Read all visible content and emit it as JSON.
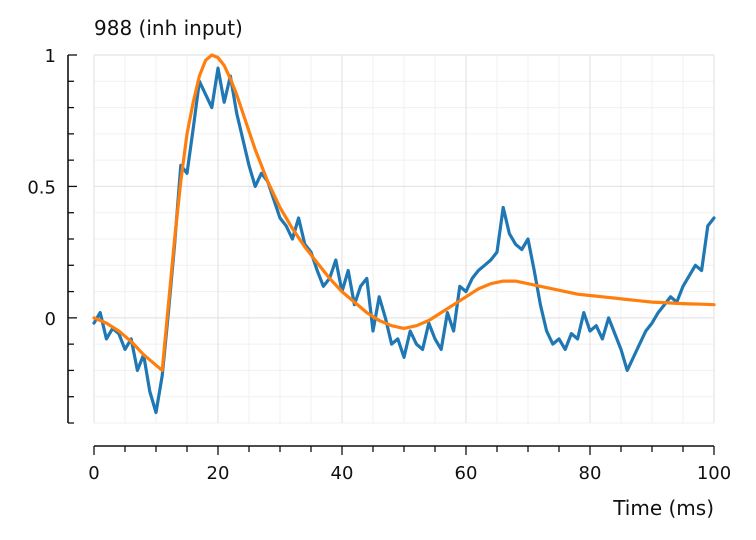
{
  "chart_data": {
    "type": "line",
    "title": "988 (inh input)",
    "xlabel": "Time (ms)",
    "ylabel": "",
    "xlim": [
      0,
      100
    ],
    "ylim": [
      -0.4,
      1.0
    ],
    "xticks": [
      0,
      20,
      40,
      60,
      80,
      100
    ],
    "xtick_labels": [
      "0",
      "20",
      "40",
      "60",
      "80",
      "100"
    ],
    "yticks": [
      0,
      0.5,
      1
    ],
    "ytick_labels": [
      "0",
      "0.5",
      "1"
    ],
    "grid": true,
    "legend": "none",
    "series": [
      {
        "color": "#1f77b4",
        "x": [
          0,
          1,
          2,
          3,
          4,
          5,
          6,
          7,
          8,
          9,
          10,
          11,
          12,
          13,
          14,
          15,
          16,
          17,
          18,
          19,
          20,
          21,
          22,
          23,
          24,
          25,
          26,
          27,
          28,
          29,
          30,
          31,
          32,
          33,
          34,
          35,
          36,
          37,
          38,
          39,
          40,
          41,
          42,
          43,
          44,
          45,
          46,
          47,
          48,
          49,
          50,
          51,
          52,
          53,
          54,
          55,
          56,
          57,
          58,
          59,
          60,
          61,
          62,
          63,
          64,
          65,
          66,
          67,
          68,
          69,
          70,
          71,
          72,
          73,
          74,
          75,
          76,
          77,
          78,
          79,
          80,
          81,
          82,
          83,
          84,
          85,
          86,
          87,
          88,
          89,
          90,
          91,
          92,
          93,
          94,
          95,
          96,
          97,
          98,
          99,
          100
        ],
        "y": [
          -0.02,
          0.02,
          -0.08,
          -0.04,
          -0.06,
          -0.12,
          -0.08,
          -0.2,
          -0.14,
          -0.28,
          -0.36,
          -0.22,
          0.02,
          0.28,
          0.58,
          0.55,
          0.72,
          0.9,
          0.85,
          0.8,
          0.95,
          0.82,
          0.92,
          0.78,
          0.68,
          0.58,
          0.5,
          0.55,
          0.52,
          0.45,
          0.38,
          0.35,
          0.3,
          0.38,
          0.28,
          0.25,
          0.18,
          0.12,
          0.15,
          0.22,
          0.1,
          0.18,
          0.05,
          0.12,
          0.15,
          -0.05,
          0.08,
          0.0,
          -0.1,
          -0.08,
          -0.15,
          -0.05,
          -0.1,
          -0.12,
          -0.02,
          -0.08,
          -0.12,
          0.02,
          -0.05,
          0.12,
          0.1,
          0.15,
          0.18,
          0.2,
          0.22,
          0.25,
          0.42,
          0.32,
          0.28,
          0.26,
          0.3,
          0.18,
          0.05,
          -0.05,
          -0.1,
          -0.08,
          -0.12,
          -0.06,
          -0.08,
          0.02,
          -0.05,
          -0.03,
          -0.08,
          0.0,
          -0.06,
          -0.12,
          -0.2,
          -0.15,
          -0.1,
          -0.05,
          -0.02,
          0.02,
          0.05,
          0.08,
          0.06,
          0.12,
          0.16,
          0.2,
          0.18,
          0.35,
          0.38
        ]
      },
      {
        "color": "#ff7f0e",
        "x": [
          0,
          2,
          4,
          6,
          8,
          10,
          11,
          12,
          13,
          14,
          15,
          16,
          17,
          18,
          19,
          20,
          21,
          22,
          23,
          24,
          26,
          28,
          30,
          32,
          34,
          36,
          38,
          40,
          42,
          44,
          46,
          48,
          50,
          52,
          54,
          56,
          58,
          60,
          62,
          64,
          66,
          68,
          70,
          72,
          74,
          76,
          78,
          80,
          82,
          84,
          86,
          88,
          90,
          92,
          94,
          96,
          98,
          100
        ],
        "y": [
          0.0,
          -0.02,
          -0.05,
          -0.09,
          -0.14,
          -0.18,
          -0.2,
          0.05,
          0.3,
          0.52,
          0.7,
          0.82,
          0.92,
          0.98,
          1.0,
          0.99,
          0.96,
          0.91,
          0.85,
          0.78,
          0.64,
          0.52,
          0.42,
          0.34,
          0.27,
          0.21,
          0.15,
          0.1,
          0.06,
          0.02,
          -0.01,
          -0.03,
          -0.04,
          -0.03,
          -0.01,
          0.02,
          0.05,
          0.08,
          0.11,
          0.13,
          0.14,
          0.14,
          0.13,
          0.12,
          0.11,
          0.1,
          0.09,
          0.085,
          0.08,
          0.075,
          0.07,
          0.065,
          0.06,
          0.058,
          0.055,
          0.053,
          0.052,
          0.05
        ]
      }
    ]
  }
}
